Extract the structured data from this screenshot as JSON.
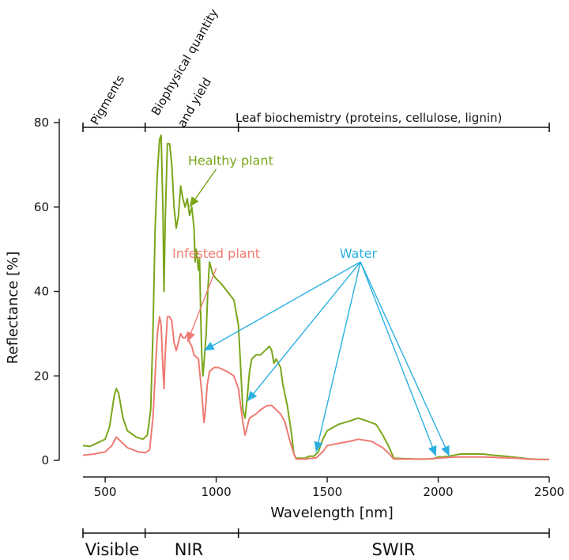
{
  "chart_data": {
    "type": "line",
    "xlabel": "Wavelength [nm]",
    "ylabel": "Reflectance [%]",
    "xlim": [
      400,
      2500
    ],
    "ylim": [
      0,
      80
    ],
    "xticks": [
      500,
      1000,
      1500,
      2000,
      2500
    ],
    "yticks": [
      0,
      20,
      40,
      60,
      80
    ],
    "grid": false,
    "series": [
      {
        "name": "Healthy plant",
        "color": "#7aa61c",
        "points": [
          [
            400,
            3.5
          ],
          [
            430,
            3.3
          ],
          [
            460,
            4
          ],
          [
            500,
            5
          ],
          [
            520,
            8
          ],
          [
            540,
            15
          ],
          [
            550,
            17
          ],
          [
            560,
            16
          ],
          [
            580,
            10
          ],
          [
            600,
            7
          ],
          [
            640,
            5.5
          ],
          [
            670,
            5
          ],
          [
            690,
            6
          ],
          [
            705,
            12
          ],
          [
            715,
            30
          ],
          [
            725,
            55
          ],
          [
            735,
            68
          ],
          [
            745,
            76
          ],
          [
            752,
            77
          ],
          [
            760,
            60
          ],
          [
            765,
            40
          ],
          [
            770,
            56
          ],
          [
            780,
            75
          ],
          [
            790,
            75
          ],
          [
            800,
            70
          ],
          [
            810,
            60
          ],
          [
            820,
            55
          ],
          [
            830,
            58
          ],
          [
            840,
            65
          ],
          [
            850,
            62
          ],
          [
            860,
            60
          ],
          [
            870,
            62
          ],
          [
            880,
            58
          ],
          [
            890,
            60
          ],
          [
            900,
            55
          ],
          [
            905,
            47
          ],
          [
            910,
            50
          ],
          [
            920,
            45
          ],
          [
            925,
            48
          ],
          [
            930,
            35
          ],
          [
            935,
            25
          ],
          [
            940,
            20
          ],
          [
            945,
            23
          ],
          [
            955,
            30
          ],
          [
            962,
            40
          ],
          [
            970,
            47
          ],
          [
            985,
            44
          ],
          [
            1000,
            43
          ],
          [
            1020,
            42
          ],
          [
            1050,
            40
          ],
          [
            1080,
            38
          ],
          [
            1100,
            32
          ],
          [
            1110,
            22
          ],
          [
            1120,
            12
          ],
          [
            1130,
            10
          ],
          [
            1140,
            15
          ],
          [
            1150,
            21
          ],
          [
            1160,
            24
          ],
          [
            1180,
            25
          ],
          [
            1200,
            25
          ],
          [
            1220,
            26
          ],
          [
            1240,
            27
          ],
          [
            1250,
            26
          ],
          [
            1260,
            23
          ],
          [
            1270,
            24
          ],
          [
            1280,
            23
          ],
          [
            1290,
            22
          ],
          [
            1300,
            18
          ],
          [
            1320,
            13
          ],
          [
            1340,
            6
          ],
          [
            1350,
            1.5
          ],
          [
            1360,
            0.5
          ],
          [
            1400,
            0.5
          ],
          [
            1420,
            1
          ],
          [
            1440,
            1
          ],
          [
            1460,
            2
          ],
          [
            1480,
            5
          ],
          [
            1500,
            7
          ],
          [
            1550,
            8.5
          ],
          [
            1600,
            9.3
          ],
          [
            1640,
            10
          ],
          [
            1680,
            9.3
          ],
          [
            1720,
            8.5
          ],
          [
            1750,
            6
          ],
          [
            1780,
            3
          ],
          [
            1800,
            0.5
          ],
          [
            1850,
            0.4
          ],
          [
            1900,
            0.3
          ],
          [
            1950,
            0.3
          ],
          [
            1980,
            0.4
          ],
          [
            2000,
            0.8
          ],
          [
            2020,
            0.8
          ],
          [
            2050,
            1
          ],
          [
            2100,
            1.5
          ],
          [
            2150,
            1.5
          ],
          [
            2200,
            1.5
          ],
          [
            2250,
            1.2
          ],
          [
            2300,
            1
          ],
          [
            2350,
            0.7
          ],
          [
            2400,
            0.4
          ],
          [
            2450,
            0.2
          ],
          [
            2500,
            0.2
          ]
        ]
      },
      {
        "name": "Infested plant",
        "color": "#ee7b72",
        "points": [
          [
            400,
            1.2
          ],
          [
            450,
            1.5
          ],
          [
            500,
            2
          ],
          [
            530,
            3.5
          ],
          [
            550,
            5.5
          ],
          [
            570,
            4.5
          ],
          [
            600,
            3
          ],
          [
            650,
            2
          ],
          [
            680,
            1.8
          ],
          [
            700,
            2.5
          ],
          [
            715,
            10
          ],
          [
            725,
            20
          ],
          [
            735,
            30
          ],
          [
            745,
            34
          ],
          [
            752,
            32
          ],
          [
            760,
            22
          ],
          [
            765,
            17
          ],
          [
            770,
            25
          ],
          [
            780,
            34
          ],
          [
            790,
            34
          ],
          [
            800,
            33
          ],
          [
            810,
            28
          ],
          [
            820,
            26
          ],
          [
            830,
            28
          ],
          [
            840,
            30
          ],
          [
            850,
            29
          ],
          [
            860,
            29
          ],
          [
            870,
            30
          ],
          [
            880,
            28
          ],
          [
            890,
            27
          ],
          [
            900,
            25
          ],
          [
            920,
            24
          ],
          [
            935,
            16
          ],
          [
            945,
            9
          ],
          [
            950,
            11
          ],
          [
            960,
            18
          ],
          [
            970,
            21
          ],
          [
            990,
            22
          ],
          [
            1010,
            22
          ],
          [
            1050,
            21
          ],
          [
            1080,
            20
          ],
          [
            1100,
            17
          ],
          [
            1110,
            13
          ],
          [
            1120,
            9
          ],
          [
            1130,
            6
          ],
          [
            1140,
            8
          ],
          [
            1150,
            10
          ],
          [
            1180,
            11
          ],
          [
            1200,
            12
          ],
          [
            1230,
            13
          ],
          [
            1250,
            13
          ],
          [
            1270,
            12
          ],
          [
            1290,
            11
          ],
          [
            1310,
            9
          ],
          [
            1330,
            5
          ],
          [
            1350,
            1.5
          ],
          [
            1360,
            0.3
          ],
          [
            1400,
            0.3
          ],
          [
            1450,
            0.6
          ],
          [
            1480,
            2
          ],
          [
            1500,
            3.5
          ],
          [
            1550,
            4
          ],
          [
            1600,
            4.5
          ],
          [
            1640,
            5
          ],
          [
            1700,
            4.5
          ],
          [
            1750,
            3
          ],
          [
            1780,
            1.5
          ],
          [
            1800,
            0.3
          ],
          [
            1850,
            0.3
          ],
          [
            1900,
            0.3
          ],
          [
            1950,
            0.3
          ],
          [
            2000,
            0.5
          ],
          [
            2050,
            0.7
          ],
          [
            2100,
            0.8
          ],
          [
            2150,
            0.8
          ],
          [
            2200,
            0.8
          ],
          [
            2250,
            0.7
          ],
          [
            2300,
            0.6
          ],
          [
            2350,
            0.5
          ],
          [
            2400,
            0.3
          ],
          [
            2450,
            0.2
          ],
          [
            2500,
            0.2
          ]
        ]
      }
    ],
    "annotations": [
      {
        "text": "Healthy plant",
        "color": "#7aa61c",
        "label_at": [
          880,
          70
        ],
        "arrow_from": [
          1000,
          69
        ],
        "arrow_to": [
          880,
          60
        ]
      },
      {
        "text": "Infested plant",
        "color": "#ee7b72",
        "label_at": [
          1000,
          48
        ],
        "arrow_from": [
          1000,
          45.5
        ],
        "arrow_to": [
          870,
          28
        ]
      },
      {
        "text": "Water",
        "color": "#2bb0e0",
        "label_at": [
          1640,
          48
        ],
        "arrow_from": [
          1650,
          47
        ],
        "arrow_targets": [
          [
            945,
            26
          ],
          [
            1140,
            14
          ],
          [
            1450,
            2
          ],
          [
            1990,
            1
          ],
          [
            2050,
            1
          ]
        ]
      }
    ],
    "top_regions": [
      {
        "label": "Pigments",
        "range": [
          400,
          680
        ]
      },
      {
        "label": "Biophysical quantity",
        "label2": "and yield",
        "range": [
          680,
          1100
        ]
      },
      {
        "label": "Leaf biochemistry (proteins, cellulose, lignin)",
        "range": [
          1100,
          2500
        ]
      }
    ],
    "bottom_regions": [
      {
        "label": "Visible",
        "range": [
          400,
          680
        ]
      },
      {
        "label": "NIR",
        "range": [
          680,
          1100
        ]
      },
      {
        "label": "SWIR",
        "range": [
          1100,
          2500
        ]
      }
    ]
  }
}
